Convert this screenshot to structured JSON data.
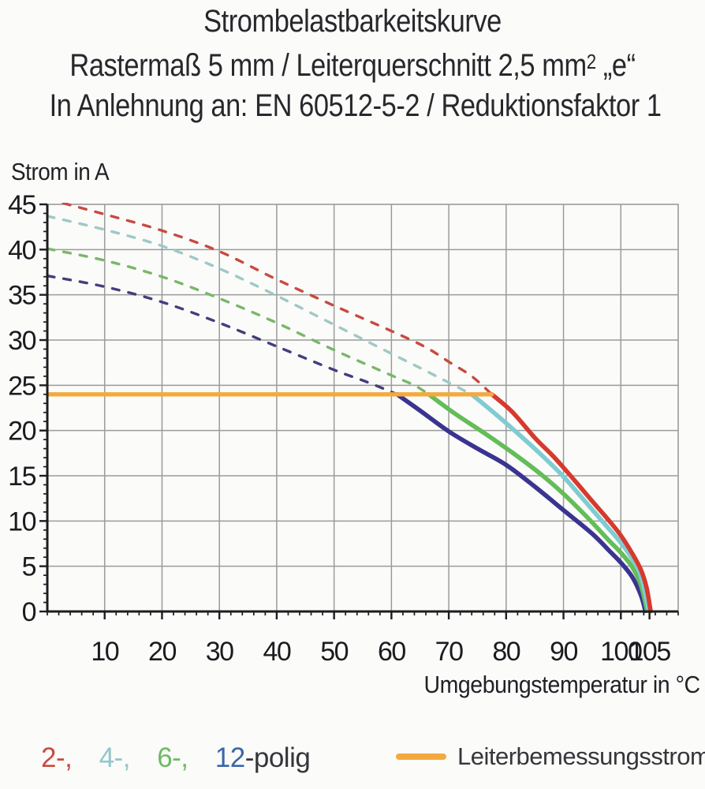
{
  "title": {
    "line1": "Strombelastbarkeitskurve",
    "line2_prefix": "Rastermaß 5 mm / Leiterquerschnitt 2,5 mm",
    "line2_sup": "2",
    "line2_suffix": " „e“",
    "line3": "In Anlehnung an: EN 60512-5-2 / Reduktionsfaktor 1"
  },
  "legend_poles": {
    "items": [
      {
        "label": "2-,",
        "color": "#c94b42"
      },
      {
        "label": "4-,",
        "color": "#92c7cb"
      },
      {
        "label": "6-,",
        "color": "#6eb965"
      },
      {
        "label": "12",
        "color": "#3a67a8"
      }
    ],
    "suffix": {
      "label": "-polig",
      "color": "#36353b"
    }
  },
  "legend_rated": {
    "label": "Leiterbemessungsstrom",
    "swatch_color": "#f4a93f"
  },
  "chart_data": {
    "type": "line",
    "title": "Strombelastbarkeitskurve Rastermaß 5 mm / Leiterquerschnitt 2,5 mm² „e“",
    "xlabel": "Umgebungstemperatur in °C",
    "ylabel": "Strom in A",
    "xlim": [
      0,
      110
    ],
    "ylim": [
      0,
      45
    ],
    "grid": {
      "x_step": 10,
      "y_step": 5,
      "on": true
    },
    "ticks": {
      "x_minor_step": 2,
      "y_minor_step": 1,
      "x_labeled": [
        10,
        20,
        30,
        40,
        50,
        60,
        70,
        80,
        90,
        100,
        105
      ],
      "y_labeled": [
        0,
        5,
        10,
        15,
        20,
        25,
        30,
        35,
        40,
        45
      ]
    },
    "legend_position": "bottom",
    "style": {
      "grid_color": "#9b9b9b",
      "axis_color": "#1d1c21",
      "dashed_width": 3.4,
      "solid_width": 5.6,
      "dash_pattern": "9 12"
    },
    "rated_line": {
      "name": "Leiterbemessungsstrom",
      "value": 24,
      "x_start": 0,
      "x_end": 77.5,
      "color": "#f4a93f"
    },
    "series": [
      {
        "name": "12-polig",
        "color": "#3a3490",
        "dashed_color": "#413f7e",
        "derating_unlimited": [
          [
            0,
            37.1
          ],
          [
            10,
            35.9
          ],
          [
            20,
            34.2
          ],
          [
            30,
            31.9
          ],
          [
            40,
            29.3
          ],
          [
            50,
            26.7
          ],
          [
            56,
            25.3
          ],
          [
            61,
            24
          ]
        ],
        "derating_limited": [
          [
            61,
            24
          ],
          [
            65,
            22.2
          ],
          [
            70,
            19.9
          ],
          [
            75,
            18.0
          ],
          [
            80,
            16.2
          ],
          [
            85,
            13.8
          ],
          [
            90,
            11.2
          ],
          [
            95,
            8.6
          ],
          [
            98,
            6.7
          ],
          [
            100,
            5.4
          ],
          [
            102,
            3.8
          ],
          [
            103.5,
            1.8
          ],
          [
            104.3,
            0
          ]
        ]
      },
      {
        "name": "6-polig",
        "color": "#63bd59",
        "dashed_color": "#79b769",
        "derating_unlimited": [
          [
            0,
            40.1
          ],
          [
            10,
            38.8
          ],
          [
            20,
            37.0
          ],
          [
            30,
            34.6
          ],
          [
            40,
            31.9
          ],
          [
            50,
            28.9
          ],
          [
            60,
            26.1
          ],
          [
            64,
            25.0
          ],
          [
            66.5,
            24
          ]
        ],
        "derating_limited": [
          [
            66.5,
            24
          ],
          [
            71,
            21.9
          ],
          [
            76,
            19.8
          ],
          [
            81,
            17.6
          ],
          [
            86,
            15.2
          ],
          [
            90,
            13.0
          ],
          [
            94,
            10.5
          ],
          [
            98,
            7.8
          ],
          [
            100,
            6.5
          ],
          [
            102,
            4.9
          ],
          [
            103.5,
            2.9
          ],
          [
            104.6,
            0
          ]
        ]
      },
      {
        "name": "4-polig",
        "color": "#7fccd2",
        "dashed_color": "#9ec9c6",
        "derating_unlimited": [
          [
            0,
            43.7
          ],
          [
            10,
            42.2
          ],
          [
            20,
            40.4
          ],
          [
            30,
            37.9
          ],
          [
            40,
            34.9
          ],
          [
            50,
            31.7
          ],
          [
            60,
            28.5
          ],
          [
            66,
            26.6
          ],
          [
            70,
            25.3
          ],
          [
            74,
            24
          ]
        ],
        "derating_limited": [
          [
            74,
            24
          ],
          [
            78,
            21.9
          ],
          [
            82,
            19.7
          ],
          [
            86,
            17.4
          ],
          [
            90,
            14.9
          ],
          [
            94,
            12.0
          ],
          [
            97,
            9.8
          ],
          [
            100,
            7.6
          ],
          [
            102,
            5.8
          ],
          [
            103.5,
            3.9
          ],
          [
            104.9,
            0
          ]
        ]
      },
      {
        "name": "2-polig",
        "color": "#d63a2e",
        "dashed_color": "#c84a40",
        "derating_unlimited": [
          [
            0,
            45.6
          ],
          [
            10,
            43.9
          ],
          [
            20,
            42.1
          ],
          [
            30,
            39.8
          ],
          [
            40,
            36.7
          ],
          [
            50,
            33.8
          ],
          [
            60,
            31.0
          ],
          [
            66,
            29.2
          ],
          [
            70,
            27.6
          ],
          [
            74,
            26.0
          ],
          [
            77.5,
            24
          ]
        ],
        "derating_limited": [
          [
            77.5,
            24
          ],
          [
            81,
            22.1
          ],
          [
            85,
            19.2
          ],
          [
            88,
            17.3
          ],
          [
            90,
            15.9
          ],
          [
            93,
            13.7
          ],
          [
            95,
            12.2
          ],
          [
            98,
            10.0
          ],
          [
            100,
            8.4
          ],
          [
            102,
            6.4
          ],
          [
            103.5,
            4.6
          ],
          [
            104.5,
            2.6
          ],
          [
            105.2,
            0
          ]
        ]
      }
    ]
  }
}
